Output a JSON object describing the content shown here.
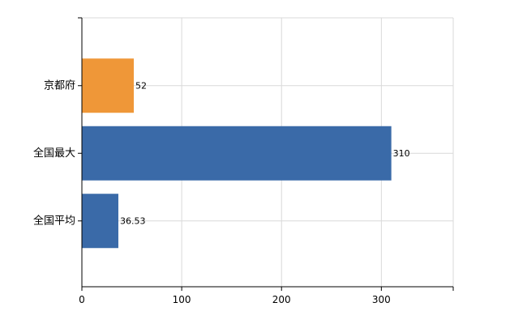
{
  "chart_data": {
    "type": "bar",
    "orientation": "horizontal",
    "categories": [
      "京都府",
      "全国最大",
      "全国平均"
    ],
    "values": [
      52,
      310,
      36.53
    ],
    "data_labels": [
      "52",
      "310",
      "36.53"
    ],
    "bar_colors": [
      "#ef9738",
      "#3a6aa8",
      "#3a6aa8"
    ],
    "xlim": [
      0,
      372
    ],
    "xticks": [
      0,
      100,
      200,
      300
    ],
    "xtick_labels": [
      "0",
      "100",
      "200",
      "300"
    ],
    "grid": true,
    "legend": "none"
  }
}
